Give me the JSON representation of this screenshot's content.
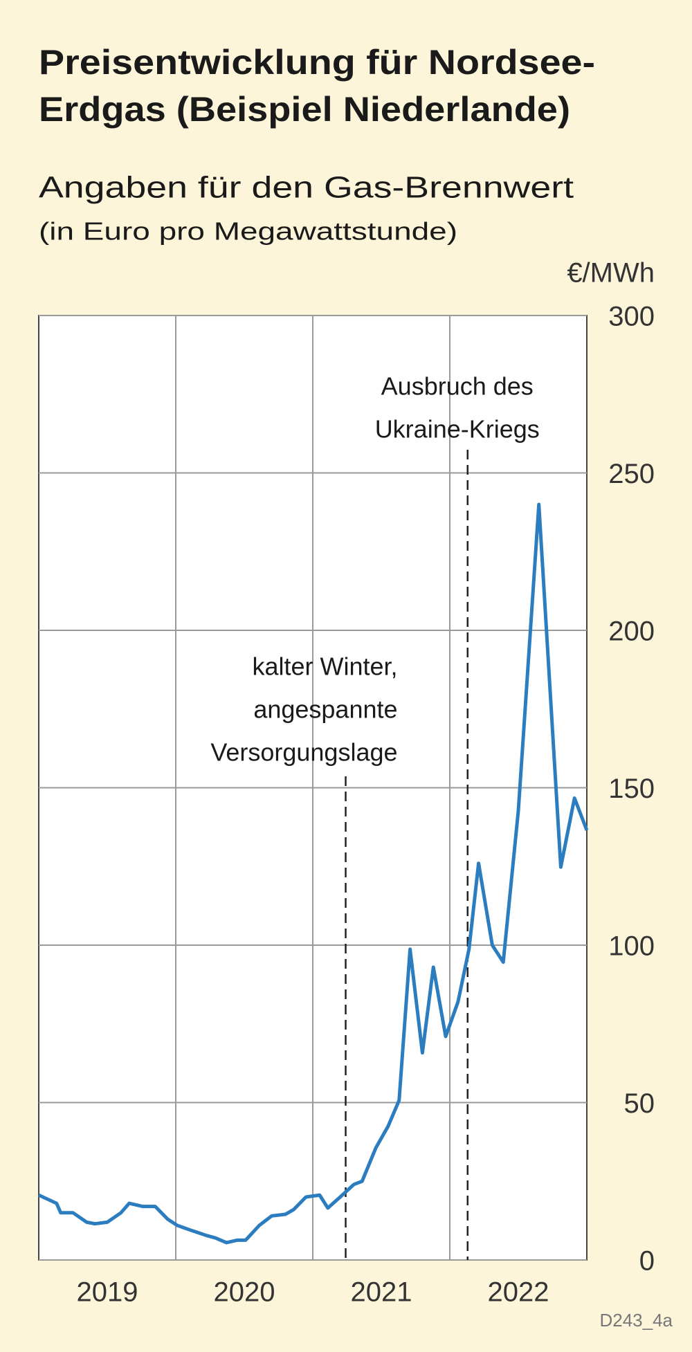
{
  "chart_data": {
    "type": "line",
    "title": [
      "Preisentwicklung für Nordsee-",
      "Erdgas (Beispiel Niederlande)"
    ],
    "subtitle": "Angaben für den Gas-Brennwert",
    "unit_note": "(in Euro pro Megawattstunde)",
    "y_axis_label": "€/MWh",
    "source": "D243_4a",
    "x": [
      2019.0,
      2019.13,
      2019.16,
      2019.25,
      2019.35,
      2019.41,
      2019.5,
      2019.6,
      2019.66,
      2019.76,
      2019.85,
      2019.94,
      2020.01,
      2020.1,
      2020.23,
      2020.29,
      2020.37,
      2020.45,
      2020.51,
      2020.61,
      2020.7,
      2020.8,
      2020.86,
      2020.95,
      2021.05,
      2021.11,
      2021.2,
      2021.3,
      2021.36,
      2021.46,
      2021.55,
      2021.63,
      2021.71,
      2021.8,
      2021.88,
      2021.97,
      2022.06,
      2022.14,
      2022.21,
      2022.31,
      2022.39,
      2022.5,
      2022.65,
      2022.81,
      2022.91,
      2023.0
    ],
    "series": [
      {
        "color": "#2b7dc0",
        "values": [
          20.6,
          18,
          15,
          15,
          12,
          11.5,
          12,
          15,
          18,
          17,
          17,
          13,
          11,
          9.6,
          7.7,
          7,
          5.5,
          6.3,
          6.3,
          11,
          14,
          14.5,
          16,
          20,
          20.6,
          16.5,
          20,
          24,
          25,
          35.6,
          42.5,
          50.7,
          98.7,
          65.8,
          93,
          71,
          82,
          98.7,
          126,
          100,
          94.6,
          142.6,
          240,
          124.8,
          146.7,
          136.5
        ]
      }
    ],
    "xlim": [
      2019,
      2023
    ],
    "xticks": [
      {
        "value": 2019.5,
        "label": "2019"
      },
      {
        "value": 2020.5,
        "label": "2020"
      },
      {
        "value": 2021.5,
        "label": "2021"
      },
      {
        "value": 2022.5,
        "label": "2022"
      }
    ],
    "xgrid": [
      2020,
      2021,
      2022
    ],
    "ylim": [
      0,
      300
    ],
    "yticks": [
      0,
      50,
      100,
      150,
      200,
      250,
      300
    ],
    "grid": true,
    "annotations": [
      {
        "x": 2021.24,
        "text": [
          "kalter Winter,",
          "angespannte",
          "Versorgungslage"
        ]
      },
      {
        "x": 2022.13,
        "text": [
          "Ausbruch des",
          "Ukraine-Kriegs"
        ]
      }
    ]
  }
}
